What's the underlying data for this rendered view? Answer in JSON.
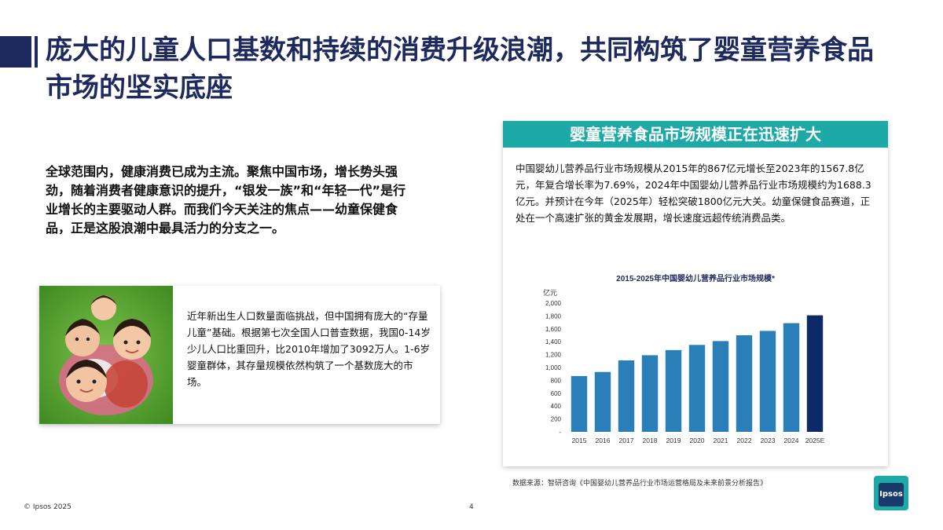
{
  "title": "庞大的儿童人口基数和持续的消费升级浪潮，共同构筑了婴童营养食品市场的坚实底座",
  "intro": "全球范围内，健康消费已成为主流。聚焦中国市场，增长势头强劲，随着消费者健康意识的提升，“银发一族”和“年轻一代”是行业增长的主要驱动人群。而我们今天关注的焦点——幼童保健食品，正是这股浪潮中最具活力的分支之一。",
  "card": {
    "text": "近年新出生人口数量面临挑战，但中国拥有庞大的“存量儿童”基础。根据第七次全国人口普查数据，我国0-14岁少儿人口比重回升，比2010年增加了3092万人。1-6岁婴童群体，其存量规模依然构筑了一个基数庞大的市场。"
  },
  "panel": {
    "header": "婴童营养食品市场规模正在迅速扩大",
    "text": "中国婴幼儿营养品行业市场规模从2015年的867亿元增长至2023年的1567.8亿元，年复合增长率为7.69%，2024年中国婴幼儿营养品行业市场规模约为1688.3亿元。并预计在今年（2025年）轻松突破1800亿元大关。幼童保健食品赛道，正处在一个高速扩张的黄金发展期，增长速度远超传统消费品类。"
  },
  "chart_data": {
    "type": "bar",
    "title": "2015-2025年中国婴幼儿营养品行业市场规模*",
    "ylabel": "亿元",
    "categories": [
      "2015",
      "2016",
      "2017",
      "2018",
      "2019",
      "2020",
      "2021",
      "2022",
      "2023",
      "2024",
      "2025E"
    ],
    "values": [
      867,
      930,
      1110,
      1190,
      1270,
      1350,
      1410,
      1500,
      1567.8,
      1688.3,
      1810
    ],
    "ylim": [
      0,
      2000
    ],
    "yticks": [
      "-",
      "200",
      "400",
      "600",
      "800",
      "1,000",
      "1,200",
      "1,400",
      "1,600",
      "1,800",
      "2,000"
    ],
    "colors": {
      "bar": "#2a7fb8",
      "highlight": "#0d2a66"
    },
    "grid": false,
    "legend": "none"
  },
  "source": "数据来源：智研咨询《中国婴幼儿营养品行业市场运营格局及未来前景分析报告》",
  "footer": {
    "copyright": "© Ipsos 2025",
    "page": "4"
  },
  "logo": {
    "text": "Ipsos"
  },
  "colors": {
    "title": "#1e2a5e",
    "teal": "#1ea9a6"
  }
}
